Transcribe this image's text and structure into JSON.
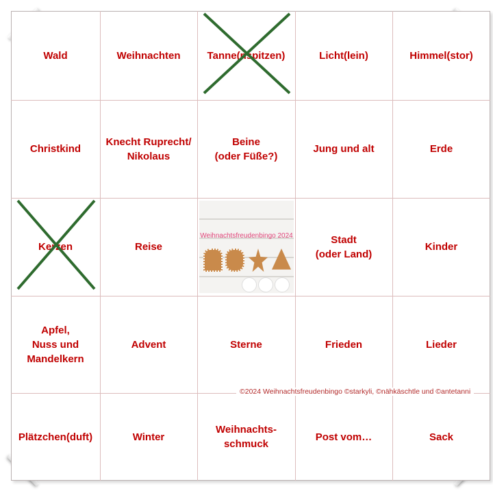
{
  "grid": [
    [
      {
        "text": "Wald",
        "crossed": false
      },
      {
        "text": "Weihnachten",
        "crossed": false
      },
      {
        "text": "Tanne(nspitzen)",
        "crossed": true
      },
      {
        "text": "Licht(lein)",
        "crossed": false
      },
      {
        "text": "Himmel(stor)",
        "crossed": false
      }
    ],
    [
      {
        "text": "Christkind",
        "crossed": false
      },
      {
        "text": "Knecht Ruprecht/\nNikolaus",
        "crossed": false
      },
      {
        "text": "Beine\n(oder Füße?)",
        "crossed": false
      },
      {
        "text": "Jung und alt",
        "crossed": false
      },
      {
        "text": "Erde",
        "crossed": false
      }
    ],
    [
      {
        "text": "Kerzen",
        "crossed": true
      },
      {
        "text": "Reise",
        "crossed": false
      },
      {
        "text": "",
        "crossed": false
      },
      {
        "text": "Stadt\n(oder Land)",
        "crossed": false
      },
      {
        "text": "Kinder",
        "crossed": false
      }
    ],
    [
      {
        "text": "Apfel,\nNuss und\nMandelkern",
        "crossed": false
      },
      {
        "text": "Advent",
        "crossed": false
      },
      {
        "text": "Sterne",
        "crossed": false
      },
      {
        "text": "Frieden",
        "crossed": false
      },
      {
        "text": "Lieder",
        "crossed": false
      }
    ],
    [
      {
        "text": "Plätzchen(duft)",
        "crossed": false
      },
      {
        "text": "Winter",
        "crossed": false
      },
      {
        "text": "Weihnachts-\nschmuck",
        "crossed": false
      },
      {
        "text": "Post vom…",
        "crossed": false
      },
      {
        "text": "Sack",
        "crossed": false
      }
    ]
  ],
  "center_image": {
    "title": "Weihnachtsfreudenbingo 2024"
  },
  "copyright": "©2024 Weihnachtsfreudenbingo ©starkyli, ©nähkäschtle und ©antetanni",
  "colors": {
    "text": "#c00000",
    "cross": "#2e6b2e",
    "grid": "#dcbcbc"
  }
}
